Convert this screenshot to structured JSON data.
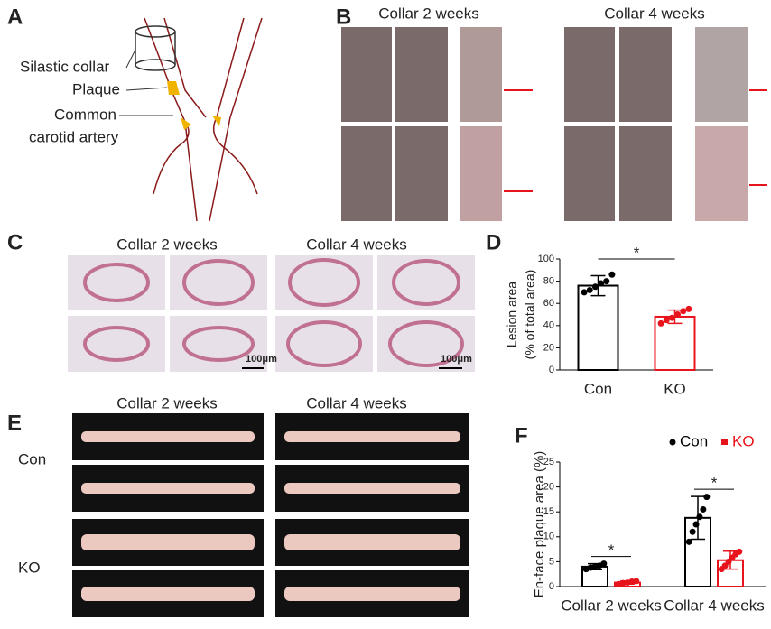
{
  "panels": [
    "A",
    "B",
    "C",
    "D",
    "E",
    "F"
  ],
  "diagram": {
    "collar": "Silastic collar",
    "plaque": "Plaque",
    "artery": [
      "Common",
      "carotid artery"
    ]
  },
  "photos_b": [
    "Collar 2 weeks",
    "Collar 4 weeks"
  ],
  "photos_c": {
    "titles": [
      "Collar 2 weeks",
      "Collar 4 weeks"
    ],
    "scale_bars": [
      "100μm",
      "100μm"
    ]
  },
  "photos_e": {
    "titles": [
      "Collar 2 weeks",
      "Collar 4 weeks"
    ],
    "rows": [
      "Con",
      "KO"
    ]
  },
  "chart_data": [
    {
      "type": "bar",
      "ylabel": [
        "Lesion area",
        "(% of total area)"
      ],
      "categories": [
        "Con",
        "KO"
      ],
      "values": [
        76,
        48
      ],
      "errors": [
        9,
        6
      ],
      "points": [
        [
          70,
          72,
          75,
          78,
          80,
          86
        ],
        [
          42,
          45,
          47,
          50,
          53,
          55
        ]
      ],
      "colors": [
        "#000000",
        "#e8141b"
      ],
      "ylim": [
        0,
        100
      ],
      "yticks": [
        0,
        20,
        40,
        60,
        80,
        100
      ],
      "annotations": [
        "*"
      ]
    },
    {
      "type": "grouped_bar",
      "ylabel": "En-face plaque area (%)",
      "categories": [
        "Collar 2 weeks",
        "Collar 4 weeks"
      ],
      "series": [
        {
          "name": "Con",
          "color": "#000000",
          "values": [
            4,
            13.8
          ],
          "errors": [
            0.6,
            4.3
          ],
          "points": [
            [
              3.5,
              3.8,
              4,
              4.2,
              4.6
            ],
            [
              9,
              11,
              12.5,
              14,
              15.5,
              18
            ]
          ]
        },
        {
          "name": "KO",
          "color": "#e8141b",
          "values": [
            0.8,
            5.3
          ],
          "errors": [
            0.3,
            1.8
          ],
          "points": [
            [
              0.5,
              0.7,
              0.8,
              1,
              1.1
            ],
            [
              3.5,
              4.2,
              5,
              5.8,
              6.5,
              7
            ]
          ]
        }
      ],
      "ylim": [
        0,
        25
      ],
      "yticks": [
        0,
        5,
        10,
        15,
        20,
        25
      ],
      "annotations": [
        "*",
        "*"
      ],
      "legend": "top-right"
    }
  ]
}
